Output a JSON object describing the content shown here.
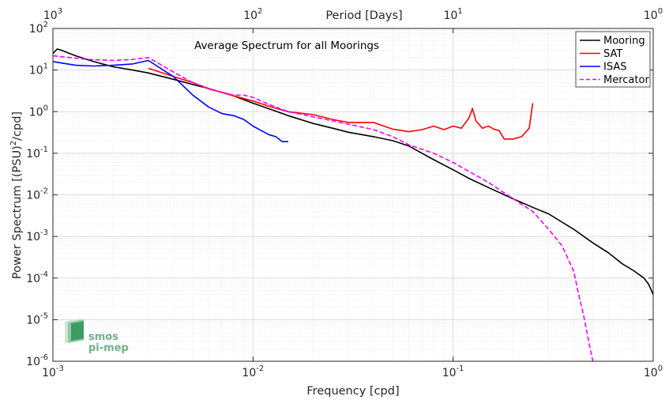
{
  "chart_data": {
    "type": "line",
    "title": "Average Spectrum for all Moorings",
    "xlabel": "Frequency [cpd]",
    "ylabel": "Power Spectrum [(PSU)",
    "ylabel_sup": "2",
    "ylabel_tail": "/cpd]",
    "x2label": "Period [Days]",
    "xscale": "log",
    "yscale": "log",
    "xlim": [
      0.001,
      1
    ],
    "ylim": [
      1e-06,
      100
    ],
    "grid": true,
    "legend_position": "top-right",
    "x_ticks": [
      {
        "base": "10",
        "exp": "-3"
      },
      {
        "base": "10",
        "exp": "-2"
      },
      {
        "base": "10",
        "exp": "-1"
      },
      {
        "base": "10",
        "exp": "0"
      }
    ],
    "x2_ticks": [
      {
        "base": "10",
        "exp": "3"
      },
      {
        "base": "10",
        "exp": "2"
      },
      {
        "base": "10",
        "exp": "1"
      },
      {
        "base": "10",
        "exp": "0"
      }
    ],
    "y_ticks": [
      {
        "base": "10",
        "exp": "-6"
      },
      {
        "base": "10",
        "exp": "-5"
      },
      {
        "base": "10",
        "exp": "-4"
      },
      {
        "base": "10",
        "exp": "-3"
      },
      {
        "base": "10",
        "exp": "-2"
      },
      {
        "base": "10",
        "exp": "-1"
      },
      {
        "base": "10",
        "exp": "0"
      },
      {
        "base": "10",
        "exp": "1"
      },
      {
        "base": "10",
        "exp": "2"
      }
    ],
    "series": [
      {
        "name": "Mooring",
        "color": "#000000",
        "dash": "solid",
        "x": [
          0.001,
          0.00105,
          0.0011,
          0.0013,
          0.0016,
          0.002,
          0.0025,
          0.003,
          0.004,
          0.005,
          0.006,
          0.008,
          0.01,
          0.0125,
          0.015,
          0.02,
          0.025,
          0.03,
          0.04,
          0.05,
          0.06,
          0.07,
          0.08,
          0.1,
          0.12,
          0.15,
          0.2,
          0.25,
          0.3,
          0.4,
          0.5,
          0.6,
          0.7,
          0.8,
          0.9,
          0.95,
          1.0
        ],
        "y": [
          25,
          32,
          30,
          22,
          16,
          12,
          10,
          8.5,
          6,
          4.5,
          3.6,
          2.4,
          1.6,
          1.1,
          0.8,
          0.52,
          0.4,
          0.32,
          0.25,
          0.2,
          0.15,
          0.1,
          0.07,
          0.04,
          0.025,
          0.015,
          0.008,
          0.005,
          0.0035,
          0.0015,
          0.0007,
          0.0004,
          0.00022,
          0.00015,
          0.0001,
          7e-05,
          4e-05
        ]
      },
      {
        "name": "SAT",
        "color": "#ff0000",
        "dash": "solid",
        "x": [
          0.003,
          0.004,
          0.005,
          0.006,
          0.008,
          0.01,
          0.012,
          0.015,
          0.02,
          0.025,
          0.03,
          0.04,
          0.045,
          0.05,
          0.06,
          0.07,
          0.08,
          0.09,
          0.1,
          0.11,
          0.12,
          0.125,
          0.13,
          0.14,
          0.15,
          0.16,
          0.17,
          0.18,
          0.2,
          0.22,
          0.24,
          0.25
        ],
        "y": [
          11,
          7,
          5,
          3.6,
          2.4,
          1.8,
          1.35,
          1.0,
          0.85,
          0.65,
          0.55,
          0.55,
          0.45,
          0.38,
          0.33,
          0.37,
          0.45,
          0.37,
          0.45,
          0.4,
          0.7,
          1.2,
          0.6,
          0.4,
          0.45,
          0.38,
          0.35,
          0.22,
          0.22,
          0.25,
          0.4,
          1.6
        ]
      },
      {
        "name": "ISAS",
        "color": "#0000ff",
        "dash": "solid",
        "x": [
          0.001,
          0.0013,
          0.0016,
          0.002,
          0.0025,
          0.003,
          0.004,
          0.005,
          0.006,
          0.007,
          0.008,
          0.009,
          0.01,
          0.011,
          0.012,
          0.013,
          0.014,
          0.015
        ],
        "y": [
          16,
          13,
          12.5,
          13,
          14,
          17,
          7,
          2.5,
          1.3,
          0.9,
          0.8,
          0.65,
          0.45,
          0.35,
          0.28,
          0.25,
          0.19,
          0.19
        ]
      },
      {
        "name": "Mercator",
        "color": "#ff00ff",
        "dash": "dashed",
        "x": [
          0.001,
          0.0015,
          0.002,
          0.0025,
          0.003,
          0.004,
          0.005,
          0.006,
          0.008,
          0.009,
          0.01,
          0.012,
          0.015,
          0.02,
          0.03,
          0.04,
          0.05,
          0.06,
          0.08,
          0.1,
          0.15,
          0.2,
          0.25,
          0.3,
          0.35,
          0.4,
          0.42,
          0.45,
          0.48,
          0.5
        ],
        "y": [
          22,
          18,
          17,
          18,
          20,
          9,
          5,
          3.5,
          2.5,
          2.5,
          2.2,
          1.5,
          1.0,
          0.75,
          0.5,
          0.37,
          0.25,
          0.16,
          0.1,
          0.06,
          0.02,
          0.008,
          0.004,
          0.0015,
          0.0006,
          0.00015,
          5e-05,
          1.2e-05,
          2.5e-06,
          1e-06
        ]
      }
    ]
  },
  "logo": {
    "line1": "smos",
    "line2": "pi-mep"
  }
}
